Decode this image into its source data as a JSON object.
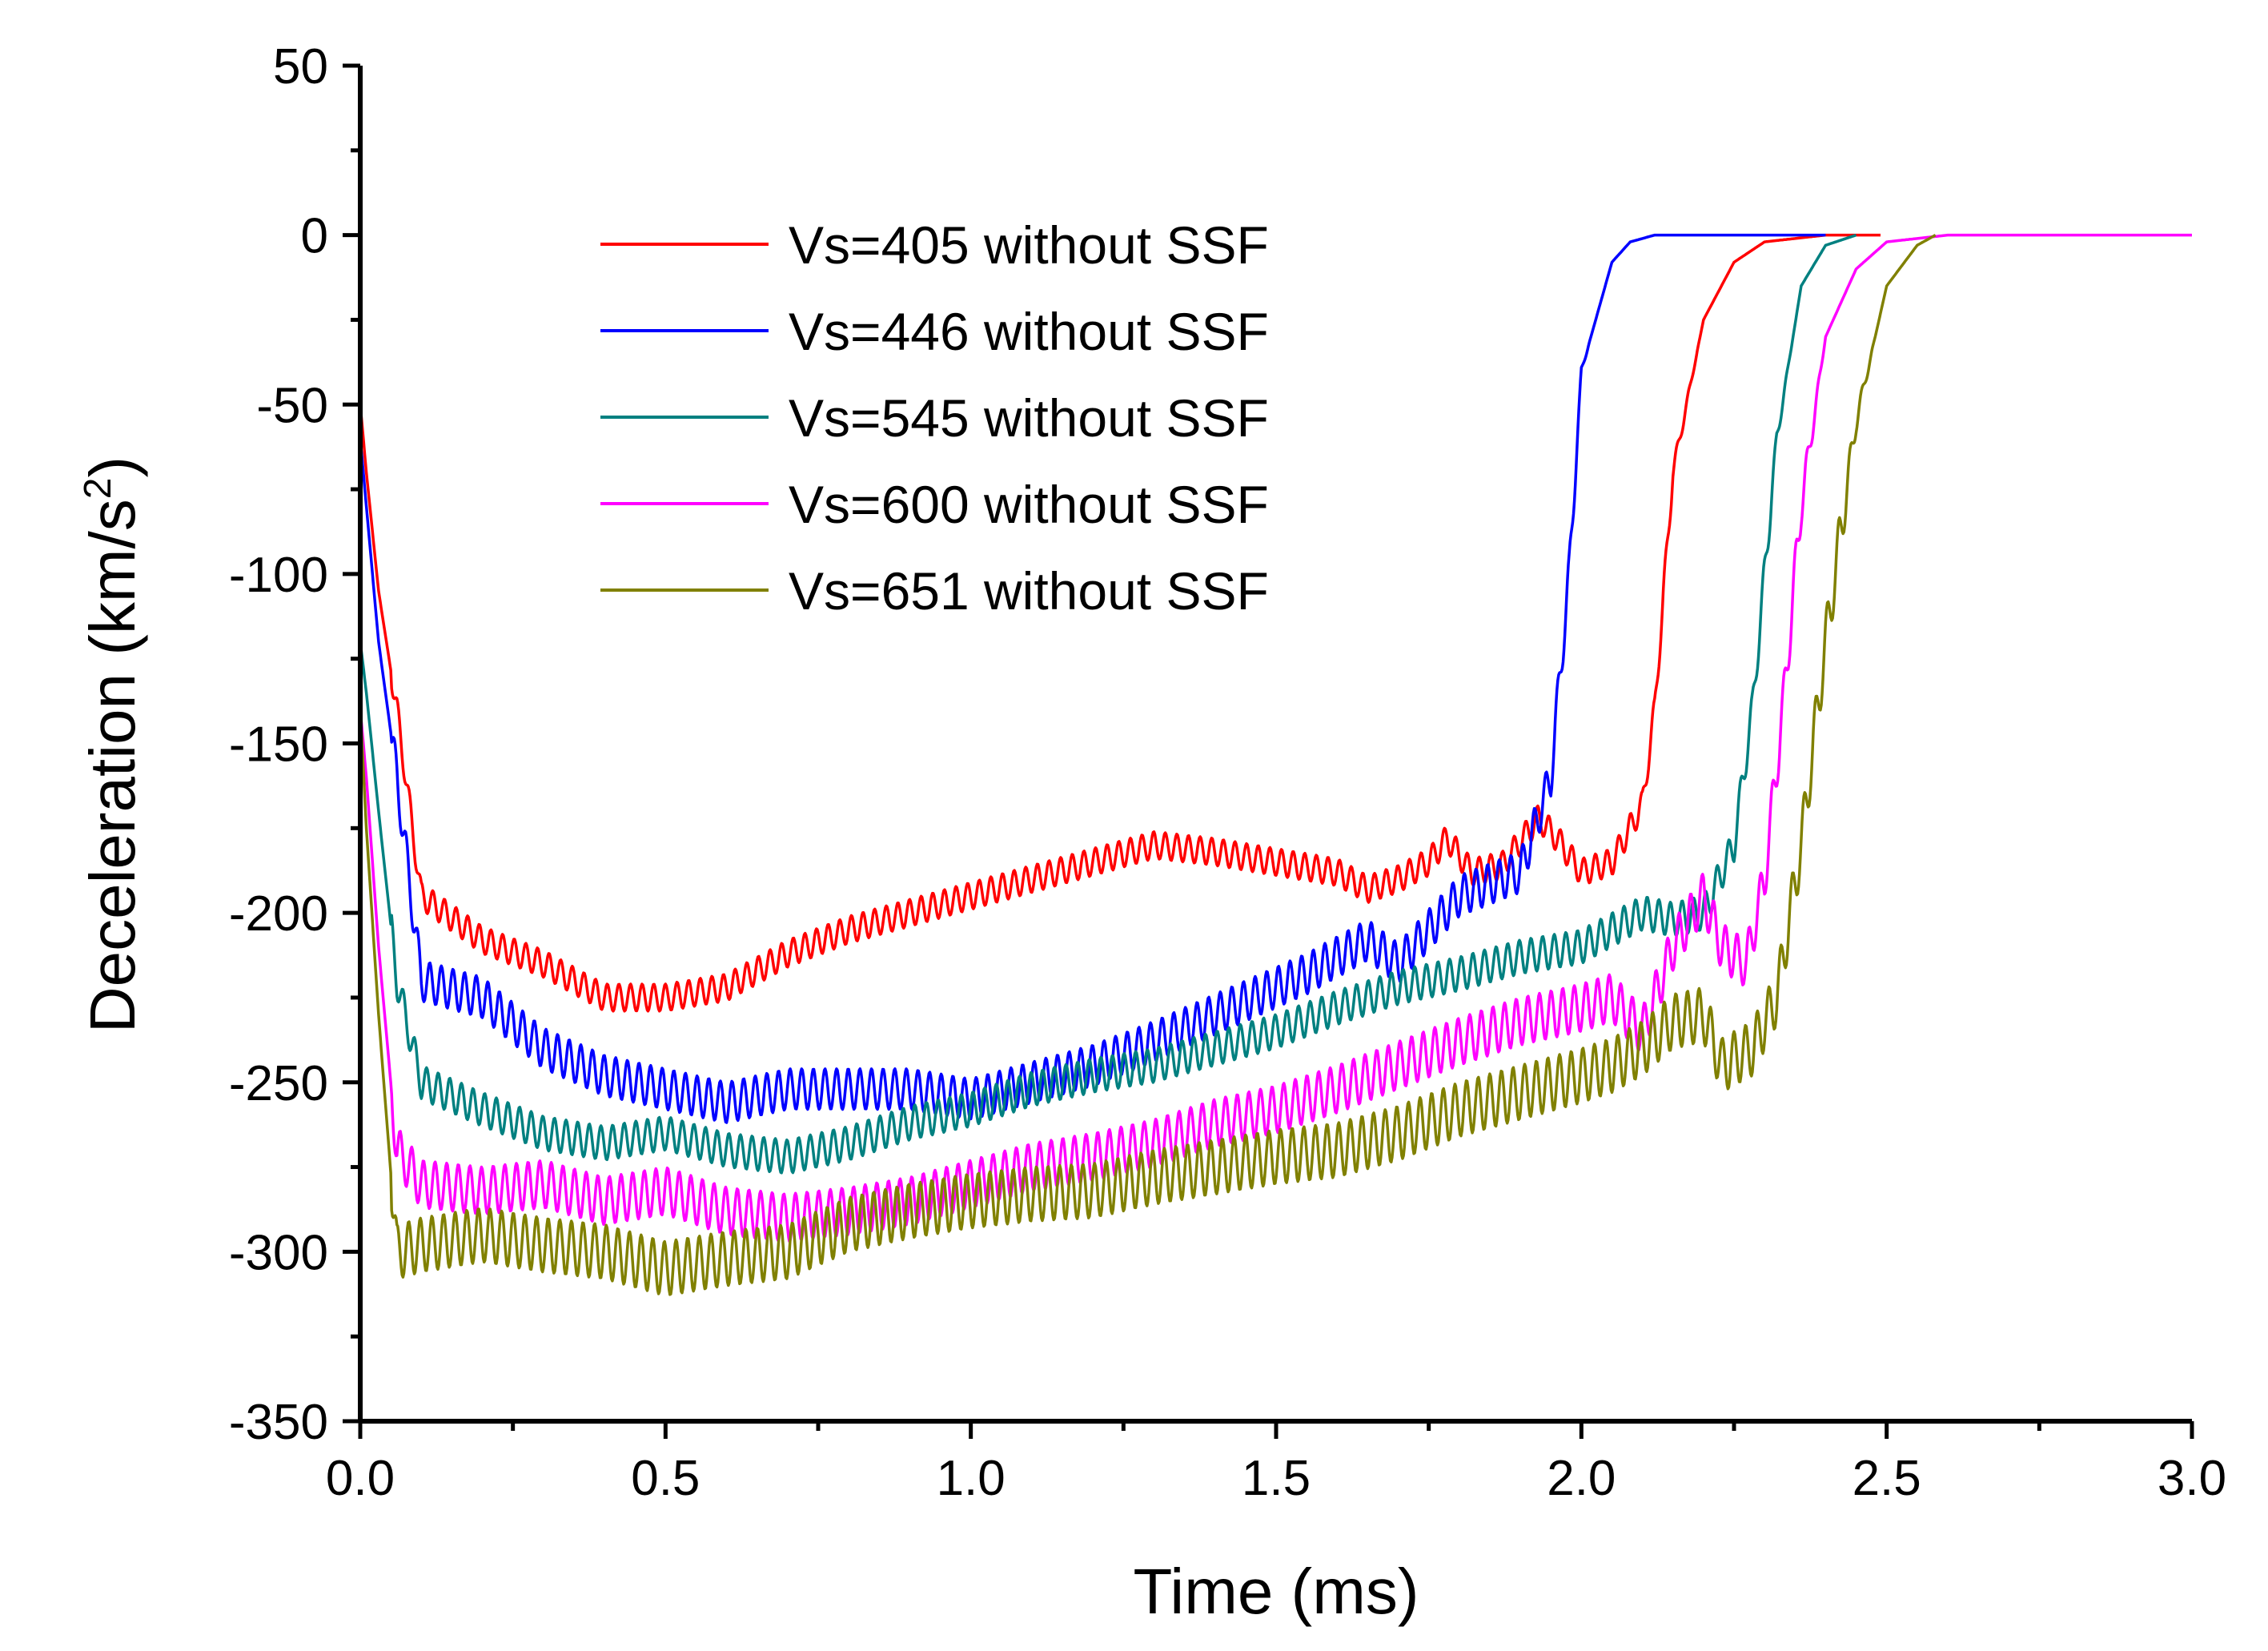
{
  "chart_data": {
    "type": "line",
    "title": "",
    "xlabel": "Time (ms)",
    "ylabel_main": "Deceleration (km/s",
    "ylabel_sup": "2",
    "ylabel_end": ")",
    "xlim": [
      0,
      3
    ],
    "ylim": [
      -350,
      50
    ],
    "xticks": [
      0,
      0.5,
      1,
      1.5,
      2,
      2.5,
      3
    ],
    "xtick_labels": [
      "0.0",
      "0.5",
      "1.0",
      "1.5",
      "2.0",
      "2.5",
      "3.0"
    ],
    "yticks": [
      50,
      0,
      -50,
      -100,
      -150,
      -200,
      -250,
      -300,
      -350
    ],
    "ytick_labels": [
      "50",
      "0",
      "-50",
      "-100",
      "-150",
      "-200",
      "-250",
      "-300",
      "-350"
    ],
    "legend_position": "upper-center",
    "series": [
      {
        "name": "Vs=405 without SSF",
        "color": "#ff0000",
        "osc_amp": 4,
        "x": [
          0,
          0.01,
          0.03,
          0.06,
          0.1,
          0.2,
          0.3,
          0.4,
          0.5,
          0.6,
          0.7,
          0.8,
          0.9,
          1.0,
          1.1,
          1.2,
          1.3,
          1.4,
          1.5,
          1.6,
          1.65,
          1.7,
          1.75,
          1.78,
          1.82,
          1.87,
          1.93,
          1.96,
          2.0,
          2.05,
          2.1,
          2.12,
          2.15,
          2.2,
          2.25,
          2.3,
          2.4,
          2.49
        ],
        "y": [
          -50,
          -70,
          -105,
          -140,
          -195,
          -208,
          -215,
          -225,
          -225,
          -222,
          -212,
          -205,
          -200,
          -195,
          -190,
          -185,
          -180,
          -182,
          -185,
          -188,
          -193,
          -190,
          -185,
          -178,
          -188,
          -186,
          -172,
          -178,
          -188,
          -185,
          -168,
          -140,
          -70,
          -25,
          -8,
          -2,
          0,
          0
        ]
      },
      {
        "name": "Vs=446 without SSF",
        "color": "#0000ff",
        "osc_amp": 6,
        "x": [
          0,
          0.01,
          0.03,
          0.06,
          0.1,
          0.2,
          0.3,
          0.4,
          0.5,
          0.6,
          0.7,
          0.8,
          0.9,
          1.0,
          1.1,
          1.2,
          1.3,
          1.4,
          1.5,
          1.55,
          1.6,
          1.65,
          1.7,
          1.75,
          1.8,
          1.87,
          1.9,
          1.95,
          1.98,
          2.0,
          2.05,
          2.08,
          2.12,
          2.2,
          2.3,
          2.4
        ],
        "y": [
          -60,
          -80,
          -120,
          -160,
          -220,
          -225,
          -240,
          -248,
          -252,
          -256,
          -252,
          -252,
          -252,
          -255,
          -250,
          -245,
          -238,
          -230,
          -222,
          -218,
          -213,
          -208,
          -215,
          -205,
          -195,
          -190,
          -188,
          -160,
          -100,
          -40,
          -8,
          -2,
          0,
          0,
          0,
          0
        ]
      },
      {
        "name": "Vs=545 without SSF",
        "color": "#008080",
        "osc_amp": 5,
        "x": [
          0,
          0.01,
          0.03,
          0.06,
          0.1,
          0.2,
          0.3,
          0.4,
          0.5,
          0.6,
          0.7,
          0.8,
          0.9,
          1.0,
          1.1,
          1.2,
          1.3,
          1.4,
          1.5,
          1.6,
          1.7,
          1.8,
          1.9,
          2.0,
          2.05,
          2.1,
          2.15,
          2.2,
          2.25,
          2.28,
          2.32,
          2.36,
          2.4,
          2.45
        ],
        "y": [
          -120,
          -135,
          -170,
          -220,
          -250,
          -258,
          -265,
          -268,
          -265,
          -270,
          -272,
          -268,
          -262,
          -258,
          -252,
          -248,
          -245,
          -240,
          -235,
          -228,
          -222,
          -218,
          -213,
          -210,
          -205,
          -200,
          -202,
          -200,
          -180,
          -140,
          -60,
          -15,
          -3,
          0
        ]
      },
      {
        "name": "Vs=600 without SSF",
        "color": "#ff00ff",
        "osc_amp": 7,
        "x": [
          0,
          0.01,
          0.03,
          0.06,
          0.1,
          0.2,
          0.3,
          0.4,
          0.5,
          0.6,
          0.7,
          0.8,
          0.9,
          1.0,
          1.1,
          1.2,
          1.3,
          1.4,
          1.5,
          1.6,
          1.7,
          1.8,
          1.9,
          2.0,
          2.05,
          2.1,
          2.15,
          2.2,
          2.23,
          2.27,
          2.3,
          2.33,
          2.36,
          2.4,
          2.45,
          2.5,
          2.6,
          3.0
        ],
        "y": [
          -140,
          -160,
          -210,
          -270,
          -280,
          -282,
          -280,
          -285,
          -282,
          -288,
          -290,
          -288,
          -285,
          -280,
          -275,
          -272,
          -268,
          -262,
          -258,
          -252,
          -245,
          -238,
          -232,
          -228,
          -225,
          -235,
          -210,
          -195,
          -210,
          -215,
          -190,
          -140,
          -80,
          -30,
          -10,
          -2,
          0,
          0
        ]
      },
      {
        "name": "Vs=651 without SSF",
        "color": "#808000",
        "osc_amp": 8,
        "x": [
          0,
          0.01,
          0.03,
          0.06,
          0.1,
          0.2,
          0.3,
          0.4,
          0.5,
          0.6,
          0.7,
          0.8,
          0.9,
          1.0,
          1.1,
          1.2,
          1.3,
          1.4,
          1.5,
          1.6,
          1.7,
          1.8,
          1.9,
          2.0,
          2.05,
          2.1,
          2.15,
          2.2,
          2.23,
          2.28,
          2.32,
          2.36,
          2.4,
          2.45,
          2.5,
          2.55,
          2.58
        ],
        "y": [
          -140,
          -175,
          -230,
          -300,
          -298,
          -295,
          -298,
          -300,
          -305,
          -302,
          -300,
          -292,
          -288,
          -285,
          -283,
          -282,
          -278,
          -275,
          -272,
          -270,
          -265,
          -258,
          -253,
          -248,
          -245,
          -240,
          -232,
          -230,
          -245,
          -240,
          -225,
          -180,
          -120,
          -55,
          -15,
          -3,
          0
        ]
      }
    ]
  }
}
